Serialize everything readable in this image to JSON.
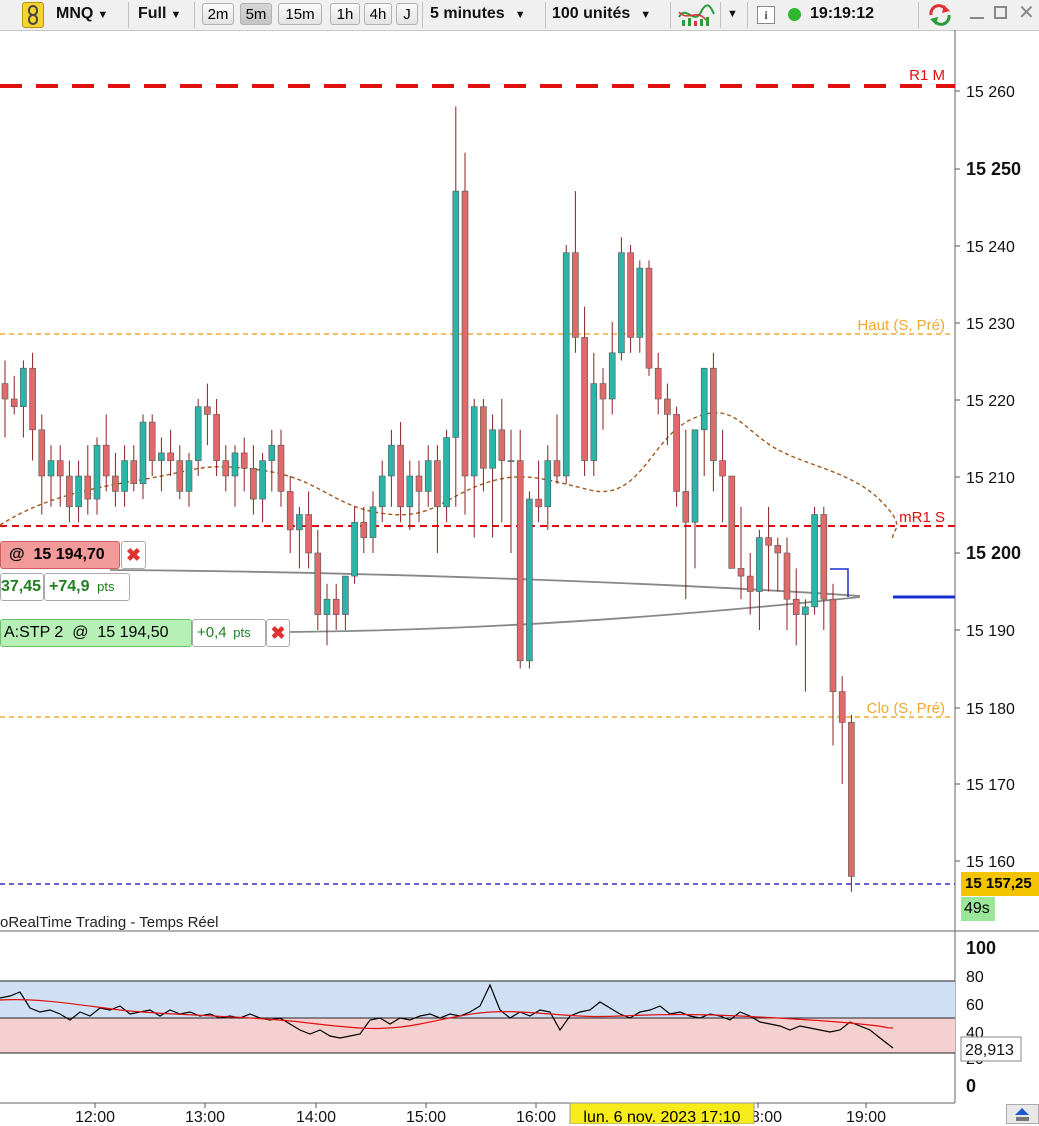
{
  "toolbar": {
    "instrument": "MNQ",
    "display_mode": "Full",
    "timeframes": [
      "2m",
      "5m",
      "15m",
      "1h",
      "4h",
      "J"
    ],
    "active_timeframe": "5m",
    "interval": "5 minutes",
    "units": "100 unités",
    "info_label": "i",
    "clock": "19:19:12",
    "status_color": "#2eb82e"
  },
  "price_axis": {
    "ticks": [
      "15 260",
      "15 250",
      "15 240",
      "15 230",
      "15 220",
      "15 210",
      "15 200",
      "15 190",
      "15 180",
      "15 170",
      "15 160"
    ],
    "current_price": "15 157,25",
    "countdown": "49s"
  },
  "levels": {
    "r1m": "R1 M",
    "haut": "Haut (S, Pré)",
    "mr1s": "mR1 S",
    "clo": "Clo (S, Pré)"
  },
  "orders": {
    "order1": {
      "at": "@",
      "price": "15 194,70",
      "pnl_left": "37,45",
      "pnl": "+74,9",
      "unit": "pts"
    },
    "order2": {
      "label": "A:STP",
      "qty": "2",
      "at": "@",
      "price": "15 194,50",
      "pnl": "+0,4",
      "unit": "pts"
    }
  },
  "source_label": "oRealTime Trading - Temps Réel",
  "indicator": {
    "ticks": [
      "100",
      "80",
      "60",
      "40",
      "20",
      "0"
    ],
    "value": "28,913",
    "upper_zone_color": "#cfe0f5",
    "lower_zone_color": "#f5d0d0"
  },
  "time_axis": {
    "labels": [
      "12:00",
      "13:00",
      "14:00",
      "15:00",
      "16:00",
      "18:00",
      "19:00"
    ],
    "cursor_label": "lun. 6 nov. 2023 17:10"
  },
  "colors": {
    "bull": "#2bb5a8",
    "bear": "#e06a6a",
    "resistance": "#e01010",
    "session": "#f0a830",
    "support": "#3030c0"
  },
  "chart_data": {
    "type": "candlestick",
    "interval": "5 minutes",
    "yrange": [
      15152,
      15266
    ],
    "candles": [
      [
        15222,
        15225,
        15215,
        15220
      ],
      [
        15220,
        15223,
        15218,
        15219
      ],
      [
        15219,
        15225,
        15215,
        15224
      ],
      [
        15224,
        15226,
        15212,
        15216
      ],
      [
        15216,
        15218,
        15205,
        15210
      ],
      [
        15210,
        15214,
        15206,
        15212
      ],
      [
        15212,
        15214,
        15206,
        15210
      ],
      [
        15210,
        15212,
        15204,
        15206
      ],
      [
        15206,
        15212,
        15204,
        15210
      ],
      [
        15210,
        15214,
        15205,
        15207
      ],
      [
        15207,
        15215,
        15205,
        15214
      ],
      [
        15214,
        15218,
        15208,
        15210
      ],
      [
        15210,
        15213,
        15206,
        15208
      ],
      [
        15208,
        15214,
        15206,
        15212
      ],
      [
        15212,
        15214,
        15208,
        15209
      ],
      [
        15209,
        15218,
        15207,
        15217
      ],
      [
        15217,
        15218,
        15210,
        15212
      ],
      [
        15212,
        15215,
        15208,
        15213
      ],
      [
        15213,
        15216,
        15210,
        15212
      ],
      [
        15212,
        15214,
        15207,
        15208
      ],
      [
        15208,
        15213,
        15206,
        15212
      ],
      [
        15212,
        15220,
        15210,
        15219
      ],
      [
        15219,
        15222,
        15214,
        15218
      ],
      [
        15218,
        15220,
        15210,
        15212
      ],
      [
        15212,
        15214,
        15208,
        15210
      ],
      [
        15210,
        15214,
        15206,
        15213
      ],
      [
        15213,
        15215,
        15208,
        15211
      ],
      [
        15211,
        15214,
        15205,
        15207
      ],
      [
        15207,
        15213,
        15204,
        15212
      ],
      [
        15212,
        15216,
        15208,
        15214
      ],
      [
        15214,
        15216,
        15206,
        15208
      ],
      [
        15208,
        15210,
        15200,
        15203
      ],
      [
        15203,
        15206,
        15198,
        15205
      ],
      [
        15205,
        15208,
        15198,
        15200
      ],
      [
        15200,
        15203,
        15190,
        15192
      ],
      [
        15192,
        15196,
        15188,
        15194
      ],
      [
        15194,
        15196,
        15190,
        15192
      ],
      [
        15192,
        15197,
        15190,
        15197
      ],
      [
        15197,
        15206,
        15196,
        15204
      ],
      [
        15204,
        15206,
        15200,
        15202
      ],
      [
        15202,
        15208,
        15200,
        15206
      ],
      [
        15206,
        15212,
        15204,
        15210
      ],
      [
        15210,
        15216,
        15206,
        15214
      ],
      [
        15214,
        15217,
        15204,
        15206
      ],
      [
        15206,
        15212,
        15203,
        15210
      ],
      [
        15210,
        15212,
        15204,
        15208
      ],
      [
        15208,
        15214,
        15206,
        15212
      ],
      [
        15212,
        15214,
        15200,
        15206
      ],
      [
        15206,
        15216,
        15204,
        15215
      ],
      [
        15215,
        15258,
        15206,
        15247
      ],
      [
        15247,
        15252,
        15205,
        15210
      ],
      [
        15210,
        15220,
        15202,
        15219
      ],
      [
        15219,
        15220,
        15208,
        15211
      ],
      [
        15211,
        15218,
        15202,
        15216
      ],
      [
        15216,
        15220,
        15204,
        15212
      ],
      [
        15212,
        15216,
        15200,
        15212
      ],
      [
        15212,
        15216,
        15185,
        15186
      ],
      [
        15186,
        15208,
        15185,
        15207
      ],
      [
        15207,
        15212,
        15204,
        15206
      ],
      [
        15206,
        15214,
        15203,
        15212
      ],
      [
        15212,
        15218,
        15209,
        15210
      ],
      [
        15210,
        15240,
        15209,
        15239
      ],
      [
        15239,
        15247,
        15226,
        15228
      ],
      [
        15228,
        15232,
        15210,
        15212
      ],
      [
        15212,
        15226,
        15210,
        15222
      ],
      [
        15222,
        15224,
        15216,
        15220
      ],
      [
        15220,
        15230,
        15218,
        15226
      ],
      [
        15226,
        15241,
        15225,
        15239
      ],
      [
        15239,
        15240,
        15226,
        15228
      ],
      [
        15228,
        15238,
        15226,
        15237
      ],
      [
        15237,
        15238,
        15223,
        15224
      ],
      [
        15224,
        15226,
        15218,
        15220
      ],
      [
        15220,
        15222,
        15214,
        15218
      ],
      [
        15218,
        15219,
        15206,
        15208
      ],
      [
        15208,
        15216,
        15194,
        15204
      ],
      [
        15204,
        15216,
        15198,
        15216
      ],
      [
        15216,
        15224,
        15210,
        15224
      ],
      [
        15224,
        15226,
        15208,
        15212
      ],
      [
        15212,
        15216,
        15204,
        15210
      ],
      [
        15210,
        15210,
        15198,
        15198
      ],
      [
        15198,
        15206,
        15194,
        15197
      ],
      [
        15197,
        15200,
        15192,
        15195
      ],
      [
        15195,
        15203,
        15190,
        15202
      ],
      [
        15202,
        15206,
        15195,
        15201
      ],
      [
        15201,
        15202,
        15195,
        15200
      ],
      [
        15200,
        15202,
        15190,
        15194
      ],
      [
        15194,
        15198,
        15188,
        15192
      ],
      [
        15192,
        15194,
        15182,
        15193
      ],
      [
        15193,
        15206,
        15192,
        15205
      ],
      [
        15205,
        15206,
        15190,
        15194
      ],
      [
        15194,
        15196,
        15175,
        15182
      ],
      [
        15182,
        15184,
        15170,
        15178
      ],
      [
        15178,
        15179,
        15156,
        15158
      ]
    ]
  }
}
